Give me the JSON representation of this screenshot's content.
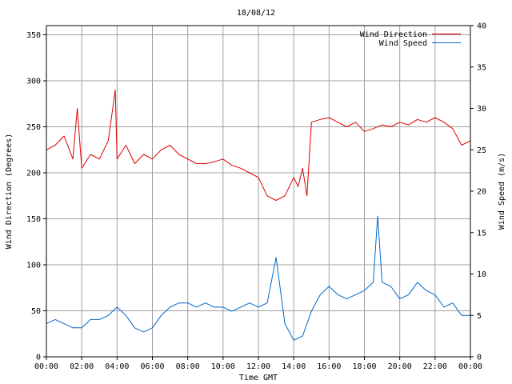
{
  "chart_data": {
    "type": "line",
    "title": "18/08/12",
    "xlabel": "Time GMT",
    "ylabel_left": "Wind Direction (Degrees)",
    "ylabel_right": "Wind Speed (m/s)",
    "x_ticks": [
      "00:00",
      "02:00",
      "04:00",
      "06:00",
      "08:00",
      "10:00",
      "12:00",
      "14:00",
      "16:00",
      "18:00",
      "20:00",
      "22:00",
      "00:00"
    ],
    "y_left_ticks": [
      "0",
      "50",
      "100",
      "150",
      "200",
      "250",
      "300",
      "350"
    ],
    "y_right_ticks": [
      "0",
      "5",
      "10",
      "15",
      "20",
      "25",
      "30",
      "35",
      "40"
    ],
    "xlim_hours": [
      0,
      24
    ],
    "ylim_left": [
      0,
      360
    ],
    "ylim_right": [
      0,
      40
    ],
    "grid": true,
    "legend_position": "top-right",
    "series": [
      {
        "name": "Wind Direction",
        "axis": "left",
        "color": "#dd0000",
        "x": [
          0,
          0.5,
          1,
          1.5,
          1.75,
          2,
          2.5,
          3,
          3.5,
          3.9,
          4,
          4.5,
          5,
          5.5,
          6,
          6.5,
          7,
          7.5,
          8,
          8.5,
          9,
          9.5,
          10,
          10.5,
          11,
          11.5,
          12,
          12.5,
          13,
          13.5,
          14,
          14.25,
          14.5,
          14.75,
          15,
          15.5,
          16,
          16.5,
          17,
          17.5,
          18,
          18.5,
          19,
          19.5,
          20,
          20.5,
          21,
          21.5,
          22,
          22.5,
          23,
          23.5,
          24
        ],
        "values": [
          225,
          230,
          240,
          215,
          270,
          205,
          220,
          215,
          235,
          290,
          215,
          230,
          210,
          220,
          215,
          225,
          230,
          220,
          215,
          210,
          210,
          212,
          215,
          208,
          205,
          200,
          195,
          175,
          170,
          175,
          195,
          185,
          205,
          175,
          255,
          258,
          260,
          255,
          250,
          255,
          245,
          248,
          252,
          250,
          255,
          252,
          258,
          255,
          260,
          255,
          248,
          230,
          235
        ]
      },
      {
        "name": "Wind Speed",
        "axis": "right",
        "color": "#0066cc",
        "x": [
          0,
          0.5,
          1,
          1.5,
          2,
          2.5,
          3,
          3.5,
          4,
          4.5,
          5,
          5.5,
          6,
          6.5,
          7,
          7.5,
          8,
          8.5,
          9,
          9.5,
          10,
          10.5,
          11,
          11.5,
          12,
          12.5,
          13,
          13.5,
          14,
          14.5,
          15,
          15.5,
          16,
          16.5,
          17,
          17.5,
          18,
          18.5,
          18.75,
          19,
          19.5,
          20,
          20.5,
          21,
          21.5,
          22,
          22.5,
          23,
          23.5,
          24
        ],
        "values": [
          4,
          4.5,
          4,
          3.5,
          3.5,
          4.5,
          4.5,
          5,
          6,
          5,
          3.5,
          3,
          3.5,
          5,
          6,
          6.5,
          6.5,
          6,
          6.5,
          6,
          6,
          5.5,
          6,
          6.5,
          6,
          6.5,
          12,
          4,
          2,
          2.5,
          5.5,
          7.5,
          8.5,
          7.5,
          7,
          7.5,
          8,
          9,
          17,
          9,
          8.5,
          7,
          7.5,
          9,
          8,
          7.5,
          6,
          6.5,
          5,
          5
        ]
      }
    ]
  }
}
